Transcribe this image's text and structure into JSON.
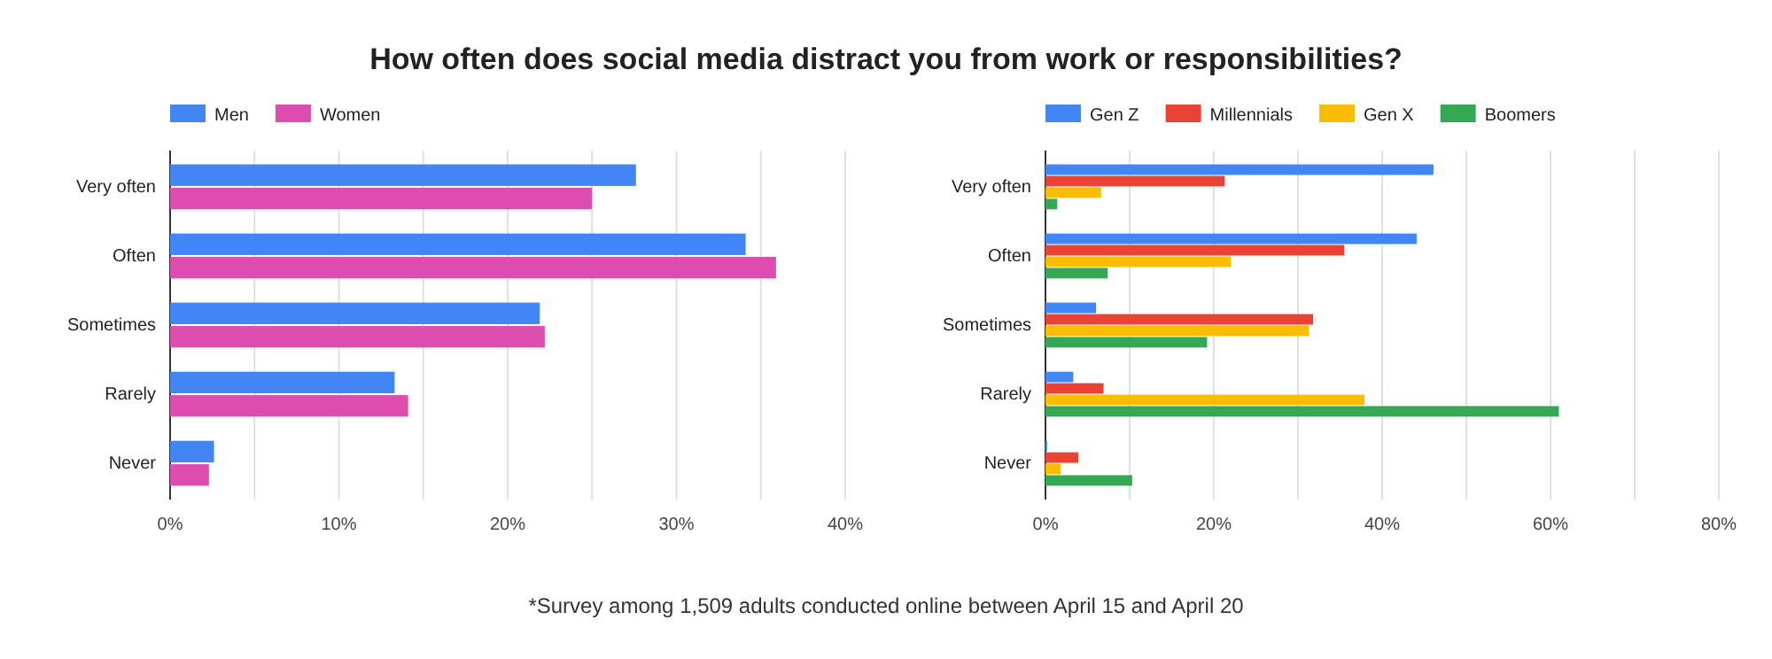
{
  "chart_data": [
    {
      "type": "bar",
      "orientation": "horizontal",
      "title": "How often does social media distract you from work or responsibilities?",
      "annotations": [
        "*Survey among 1,509 adults conducted online between April 15 and April 20"
      ],
      "categories": [
        "Very often",
        "Often",
        "Sometimes",
        "Rarely",
        "Never"
      ],
      "series": [
        {
          "name": "Men",
          "color": "#4285f4",
          "values": [
            27.6,
            34.1,
            21.9,
            13.3,
            2.6
          ]
        },
        {
          "name": "Women",
          "color": "#dd4db0",
          "values": [
            25.0,
            35.9,
            22.2,
            14.1,
            2.3
          ]
        }
      ],
      "xlim": [
        0,
        40
      ],
      "xticks": [
        {
          "value": 0,
          "label": "0%"
        },
        {
          "value": 5,
          "label": null
        },
        {
          "value": 10,
          "label": "10%"
        },
        {
          "value": 15,
          "label": null
        },
        {
          "value": 20,
          "label": "20%"
        },
        {
          "value": 25,
          "label": null
        },
        {
          "value": 30,
          "label": "30%"
        },
        {
          "value": 35,
          "label": null
        },
        {
          "value": 40,
          "label": "40%"
        }
      ],
      "grid": "x",
      "legend": "top left"
    },
    {
      "type": "bar",
      "orientation": "horizontal",
      "categories": [
        "Very often",
        "Often",
        "Sometimes",
        "Rarely",
        "Never"
      ],
      "series": [
        {
          "name": "Gen Z",
          "color": "#4285f4",
          "values": [
            46.1,
            44.1,
            6.0,
            3.3,
            0.2
          ]
        },
        {
          "name": "Millennials",
          "color": "#ea4335",
          "values": [
            21.3,
            35.5,
            31.8,
            6.9,
            3.9
          ]
        },
        {
          "name": "Gen X",
          "color": "#fbbc04",
          "values": [
            6.6,
            22.0,
            31.3,
            37.9,
            1.8
          ]
        },
        {
          "name": "Boomers",
          "color": "#34a853",
          "values": [
            1.4,
            7.4,
            19.2,
            61.0,
            10.3
          ]
        }
      ],
      "xlim": [
        0,
        80
      ],
      "xticks": [
        {
          "value": 0,
          "label": "0%"
        },
        {
          "value": 10,
          "label": null
        },
        {
          "value": 20,
          "label": "20%"
        },
        {
          "value": 30,
          "label": null
        },
        {
          "value": 40,
          "label": "40%"
        },
        {
          "value": 50,
          "label": null
        },
        {
          "value": 60,
          "label": "60%"
        },
        {
          "value": 70,
          "label": null
        },
        {
          "value": 80,
          "label": "80%"
        }
      ],
      "grid": "x",
      "legend": "top left"
    }
  ]
}
